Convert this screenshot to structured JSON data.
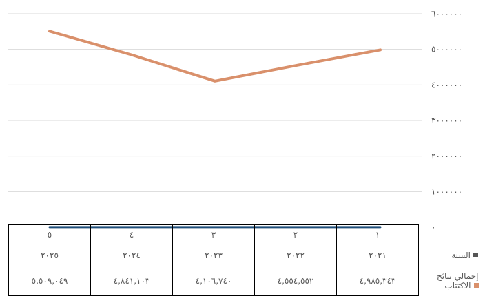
{
  "chart_data": {
    "type": "line",
    "title": "",
    "xlabel": "",
    "ylabel": "",
    "ylim": [
      0,
      6000000
    ],
    "y_ticks": [
      "٠",
      "١٠٠٠٠٠٠",
      "٢٠٠٠٠٠٠",
      "٣٠٠٠٠٠٠",
      "٤٠٠٠٠٠٠",
      "٥٠٠٠٠٠٠",
      "٦٠٠٠٠٠٠"
    ],
    "categories": [
      "١",
      "٢",
      "٣",
      "٤",
      "٥"
    ],
    "grid": true,
    "series": [
      {
        "name": "السنة",
        "color": "#1f4e79",
        "values": [
          2021,
          2022,
          2023,
          2024,
          2025
        ],
        "labels": [
          "٢٠٢١",
          "٢٠٢٢",
          "٢٠٢٣",
          "٢٠٢٤",
          "٢٠٢٥"
        ]
      },
      {
        "name": "إجمالي نتائج الاكتتاب",
        "color": "#d9906b",
        "values": [
          4985343,
          4554552,
          4106740,
          4841103,
          5509049
        ],
        "labels": [
          "٤,٩٨٥,٣٤٣",
          "٤,٥٥٤,٥٥٢",
          "٤,١٠٦,٧٤٠",
          "٤,٨٤١,١٠٣",
          "٥,٥٠٩,٠٤٩"
        ]
      }
    ]
  }
}
